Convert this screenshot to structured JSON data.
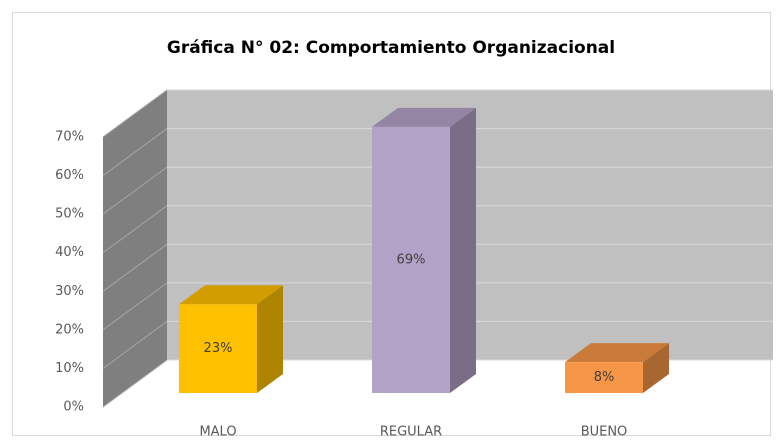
{
  "chart_data": {
    "type": "bar3d",
    "title": "Gráfica N° 02: Comportamiento Organizacional",
    "categories": [
      "MALO",
      "REGULAR",
      "BUENO"
    ],
    "values": [
      23,
      69,
      8
    ],
    "value_labels": [
      "23%",
      "69%",
      "8%"
    ],
    "colors": [
      "#ffc000",
      "#b3a2c7",
      "#f79646"
    ],
    "ylim": [
      0,
      70
    ],
    "yticks": [
      {
        "value": 0,
        "label": "0%"
      },
      {
        "value": 10,
        "label": "10%"
      },
      {
        "value": 20,
        "label": "20%"
      },
      {
        "value": 30,
        "label": "30%"
      },
      {
        "value": 40,
        "label": "40%"
      },
      {
        "value": 50,
        "label": "50%"
      },
      {
        "value": 60,
        "label": "60%"
      },
      {
        "value": 70,
        "label": "70%"
      }
    ],
    "grid": true
  }
}
